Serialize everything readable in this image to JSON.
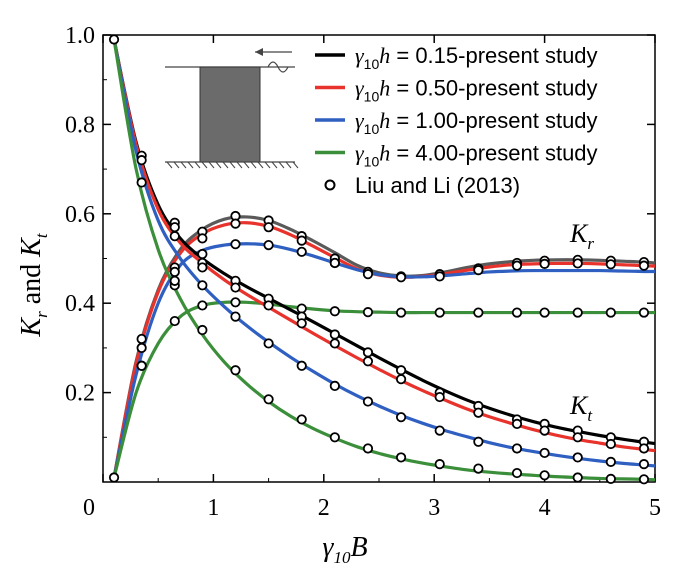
{
  "chart_data": {
    "type": "line",
    "title": "",
    "xlabel": "γ10B",
    "ylabel": "Kr and Kt",
    "xlim": [
      0,
      5
    ],
    "ylim": [
      0,
      1.0
    ],
    "xticks": [
      0,
      1,
      2,
      3,
      4,
      5
    ],
    "yticks": [
      0.2,
      0.4,
      0.6,
      0.8,
      1.0
    ],
    "xtick_labels": [
      "0",
      "1",
      "2",
      "3",
      "4",
      "5"
    ],
    "ytick_labels": [
      "0.2",
      "0.4",
      "0.6",
      "0.8",
      "1.0"
    ],
    "curve_labels": {
      "Kr": "K_r",
      "Kt": "K_t"
    },
    "legend": [
      {
        "name": "γ10h = 0.15-present study",
        "color": "#000000",
        "style": "line"
      },
      {
        "name": "γ10h = 0.50-present study",
        "color": "#e8322c",
        "style": "line"
      },
      {
        "name": "γ10h = 1.00-present study",
        "color": "#2e5fc1",
        "style": "line"
      },
      {
        "name": "γ10h = 4.00-present study",
        "color": "#3c8f3a",
        "style": "line"
      },
      {
        "name": "Liu and Li (2013)",
        "color": "#000000",
        "style": "marker"
      }
    ],
    "series": [
      {
        "name": "Kr γ10h=0.15",
        "color": "#5a5a5a",
        "x": [
          0.1,
          0.3,
          0.5,
          0.7,
          0.9,
          1.1,
          1.3,
          1.5,
          1.7,
          1.9,
          2.1,
          2.3,
          2.5,
          2.7,
          2.9,
          3.1,
          3.3,
          3.5,
          3.7,
          3.9,
          4.1,
          4.3,
          4.5,
          4.7,
          4.9,
          5.0
        ],
        "y": [
          0.01,
          0.27,
          0.43,
          0.52,
          0.565,
          0.588,
          0.593,
          0.585,
          0.565,
          0.54,
          0.513,
          0.485,
          0.468,
          0.461,
          0.462,
          0.47,
          0.48,
          0.488,
          0.493,
          0.496,
          0.497,
          0.497,
          0.496,
          0.494,
          0.492,
          0.49
        ]
      },
      {
        "name": "Kr γ10h=0.50",
        "color": "#e8322c",
        "x": [
          0.1,
          0.3,
          0.5,
          0.7,
          0.9,
          1.1,
          1.3,
          1.5,
          1.7,
          1.9,
          2.1,
          2.3,
          2.5,
          2.7,
          2.9,
          3.1,
          3.3,
          3.5,
          3.7,
          3.9,
          4.1,
          4.3,
          4.5,
          4.7,
          4.9,
          5.0
        ],
        "y": [
          0.01,
          0.265,
          0.425,
          0.512,
          0.555,
          0.575,
          0.58,
          0.572,
          0.553,
          0.528,
          0.502,
          0.477,
          0.463,
          0.458,
          0.46,
          0.466,
          0.474,
          0.481,
          0.486,
          0.488,
          0.489,
          0.489,
          0.488,
          0.486,
          0.484,
          0.483
        ]
      },
      {
        "name": "Kr γ10h=1.00",
        "color": "#2e5fc1",
        "x": [
          0.1,
          0.3,
          0.5,
          0.7,
          0.9,
          1.1,
          1.3,
          1.5,
          1.7,
          1.9,
          2.1,
          2.3,
          2.5,
          2.7,
          2.9,
          3.1,
          3.3,
          3.5,
          3.7,
          3.9,
          4.1,
          4.3,
          4.5,
          4.7,
          4.9,
          5.0
        ],
        "y": [
          0.01,
          0.24,
          0.4,
          0.485,
          0.518,
          0.53,
          0.533,
          0.53,
          0.52,
          0.506,
          0.49,
          0.475,
          0.464,
          0.459,
          0.459,
          0.462,
          0.466,
          0.47,
          0.472,
          0.473,
          0.473,
          0.473,
          0.473,
          0.472,
          0.471,
          0.471
        ]
      },
      {
        "name": "Kr γ10h=4.00",
        "color": "#3c8f3a",
        "x": [
          0.1,
          0.3,
          0.5,
          0.7,
          0.9,
          1.1,
          1.3,
          1.5,
          1.7,
          1.9,
          2.1,
          2.3,
          2.5,
          2.7,
          2.9,
          3.1,
          3.3,
          3.5,
          3.7,
          3.9,
          4.1,
          4.3,
          4.5,
          4.7,
          4.9,
          5.0
        ],
        "y": [
          0.01,
          0.2,
          0.31,
          0.37,
          0.395,
          0.402,
          0.402,
          0.398,
          0.392,
          0.387,
          0.383,
          0.381,
          0.38,
          0.379,
          0.379,
          0.379,
          0.379,
          0.379,
          0.379,
          0.379,
          0.379,
          0.379,
          0.379,
          0.379,
          0.379,
          0.379
        ]
      },
      {
        "name": "Kt γ10h=0.15",
        "color": "#000000",
        "x": [
          0.1,
          0.3,
          0.5,
          0.7,
          0.9,
          1.1,
          1.3,
          1.5,
          1.7,
          1.9,
          2.1,
          2.3,
          2.5,
          2.7,
          2.9,
          3.1,
          3.3,
          3.5,
          3.7,
          3.9,
          4.1,
          4.3,
          4.5,
          4.7,
          4.9,
          5.0
        ],
        "y": [
          0.99,
          0.76,
          0.62,
          0.545,
          0.5,
          0.466,
          0.437,
          0.411,
          0.385,
          0.359,
          0.332,
          0.305,
          0.278,
          0.252,
          0.227,
          0.204,
          0.183,
          0.165,
          0.149,
          0.135,
          0.123,
          0.113,
          0.104,
          0.096,
          0.089,
          0.086
        ]
      },
      {
        "name": "Kt γ10h=0.50",
        "color": "#e8322c",
        "x": [
          0.1,
          0.3,
          0.5,
          0.7,
          0.9,
          1.1,
          1.3,
          1.5,
          1.7,
          1.9,
          2.1,
          2.3,
          2.5,
          2.7,
          2.9,
          3.1,
          3.3,
          3.5,
          3.7,
          3.9,
          4.1,
          4.3,
          4.5,
          4.7,
          4.9,
          5.0
        ],
        "y": [
          0.99,
          0.755,
          0.61,
          0.535,
          0.49,
          0.452,
          0.42,
          0.391,
          0.362,
          0.333,
          0.305,
          0.278,
          0.252,
          0.227,
          0.204,
          0.183,
          0.163,
          0.146,
          0.131,
          0.117,
          0.105,
          0.095,
          0.087,
          0.079,
          0.073,
          0.07
        ]
      },
      {
        "name": "Kt γ10h=1.00",
        "color": "#2e5fc1",
        "x": [
          0.1,
          0.3,
          0.5,
          0.7,
          0.9,
          1.1,
          1.3,
          1.5,
          1.7,
          1.9,
          2.1,
          2.3,
          2.5,
          2.7,
          2.9,
          3.1,
          3.3,
          3.5,
          3.7,
          3.9,
          4.1,
          4.3,
          4.5,
          4.7,
          4.9,
          5.0
        ],
        "y": [
          0.99,
          0.74,
          0.585,
          0.5,
          0.44,
          0.392,
          0.35,
          0.313,
          0.279,
          0.248,
          0.219,
          0.193,
          0.17,
          0.149,
          0.131,
          0.115,
          0.101,
          0.088,
          0.077,
          0.068,
          0.06,
          0.053,
          0.047,
          0.042,
          0.038,
          0.036
        ]
      },
      {
        "name": "Kt γ10h=4.00",
        "color": "#3c8f3a",
        "x": [
          0.1,
          0.3,
          0.5,
          0.7,
          0.9,
          1.1,
          1.3,
          1.5,
          1.7,
          1.9,
          2.1,
          2.3,
          2.5,
          2.7,
          2.9,
          3.1,
          3.3,
          3.5,
          3.7,
          3.9,
          4.1,
          4.3,
          4.5,
          4.7,
          4.9,
          5.0
        ],
        "y": [
          0.99,
          0.7,
          0.52,
          0.41,
          0.33,
          0.268,
          0.22,
          0.18,
          0.147,
          0.12,
          0.098,
          0.079,
          0.064,
          0.052,
          0.042,
          0.034,
          0.027,
          0.022,
          0.018,
          0.015,
          0.012,
          0.01,
          0.008,
          0.007,
          0.006,
          0.005
        ]
      }
    ],
    "markers": [
      {
        "name": "Liu and Li (2013) Kr 0.15",
        "x": [
          0.1,
          0.35,
          0.65,
          0.9,
          1.2,
          1.5,
          1.8,
          2.1,
          2.4,
          2.7,
          3.05,
          3.4,
          3.75,
          4.0,
          4.3,
          4.6,
          4.9
        ],
        "y": [
          0.01,
          0.32,
          0.48,
          0.56,
          0.595,
          0.585,
          0.55,
          0.5,
          0.47,
          0.46,
          0.465,
          0.478,
          0.49,
          0.495,
          0.497,
          0.495,
          0.492
        ]
      },
      {
        "name": "Liu and Li (2013) Kr 0.50",
        "x": [
          0.35,
          0.65,
          0.9,
          1.2,
          1.5,
          1.8,
          2.1,
          2.4,
          2.7,
          3.05,
          3.4,
          3.75,
          4.0,
          4.3,
          4.6,
          4.9
        ],
        "y": [
          0.3,
          0.47,
          0.545,
          0.578,
          0.57,
          0.54,
          0.49,
          0.465,
          0.458,
          0.46,
          0.474,
          0.484,
          0.488,
          0.489,
          0.487,
          0.484
        ]
      },
      {
        "name": "Liu and Li (2013) Kr 1.00",
        "x": [
          0.35,
          0.65,
          0.9,
          1.2,
          1.5,
          1.8,
          2.1
        ],
        "y": [
          0.26,
          0.44,
          0.51,
          0.532,
          0.53,
          0.515,
          0.49
        ]
      },
      {
        "name": "Liu and Li (2013) Kr 4.00",
        "x": [
          0.35,
          0.65,
          0.9,
          1.2,
          1.5,
          1.8,
          2.1,
          2.4,
          2.7,
          3.05,
          3.4,
          3.75,
          4.0,
          4.3,
          4.6,
          4.9
        ],
        "y": [
          0.26,
          0.36,
          0.395,
          0.402,
          0.397,
          0.388,
          0.382,
          0.38,
          0.379,
          0.379,
          0.379,
          0.379,
          0.379,
          0.379,
          0.379,
          0.379
        ]
      },
      {
        "name": "Liu and Li (2013) Kt 0.15",
        "x": [
          0.1,
          0.35,
          0.65,
          0.9,
          1.2,
          1.5,
          1.8,
          2.1,
          2.4,
          2.7,
          3.05,
          3.4,
          3.75,
          4.0,
          4.3,
          4.6,
          4.9
        ],
        "y": [
          0.99,
          0.73,
          0.58,
          0.49,
          0.45,
          0.41,
          0.37,
          0.33,
          0.29,
          0.25,
          0.2,
          0.17,
          0.14,
          0.13,
          0.115,
          0.1,
          0.09
        ]
      },
      {
        "name": "Liu and Li (2013) Kt 0.50",
        "x": [
          0.35,
          0.65,
          0.9,
          1.2,
          1.5,
          1.8,
          2.1,
          2.4,
          2.7,
          3.05,
          3.4,
          3.75,
          4.0,
          4.3,
          4.6,
          4.9
        ],
        "y": [
          0.72,
          0.57,
          0.48,
          0.435,
          0.395,
          0.355,
          0.31,
          0.27,
          0.23,
          0.19,
          0.155,
          0.13,
          0.115,
          0.1,
          0.085,
          0.075
        ]
      },
      {
        "name": "Liu and Li (2013) Kt 1.00",
        "x": [
          0.65,
          0.9,
          1.2,
          1.5,
          1.8,
          2.1,
          2.4,
          2.7,
          3.05,
          3.4,
          3.75,
          4.0,
          4.3,
          4.6,
          4.9
        ],
        "y": [
          0.55,
          0.44,
          0.37,
          0.31,
          0.26,
          0.215,
          0.18,
          0.145,
          0.115,
          0.09,
          0.075,
          0.065,
          0.055,
          0.045,
          0.04
        ]
      },
      {
        "name": "Liu and Li (2013) Kt 4.00",
        "x": [
          0.35,
          0.65,
          0.9,
          1.2,
          1.5,
          1.8,
          2.1,
          2.4,
          2.7,
          3.05,
          3.4,
          3.75,
          4.0,
          4.3,
          4.6,
          4.9
        ],
        "y": [
          0.67,
          0.45,
          0.34,
          0.25,
          0.185,
          0.14,
          0.1,
          0.075,
          0.055,
          0.04,
          0.03,
          0.02,
          0.015,
          0.01,
          0.007,
          0.006
        ]
      }
    ]
  }
}
